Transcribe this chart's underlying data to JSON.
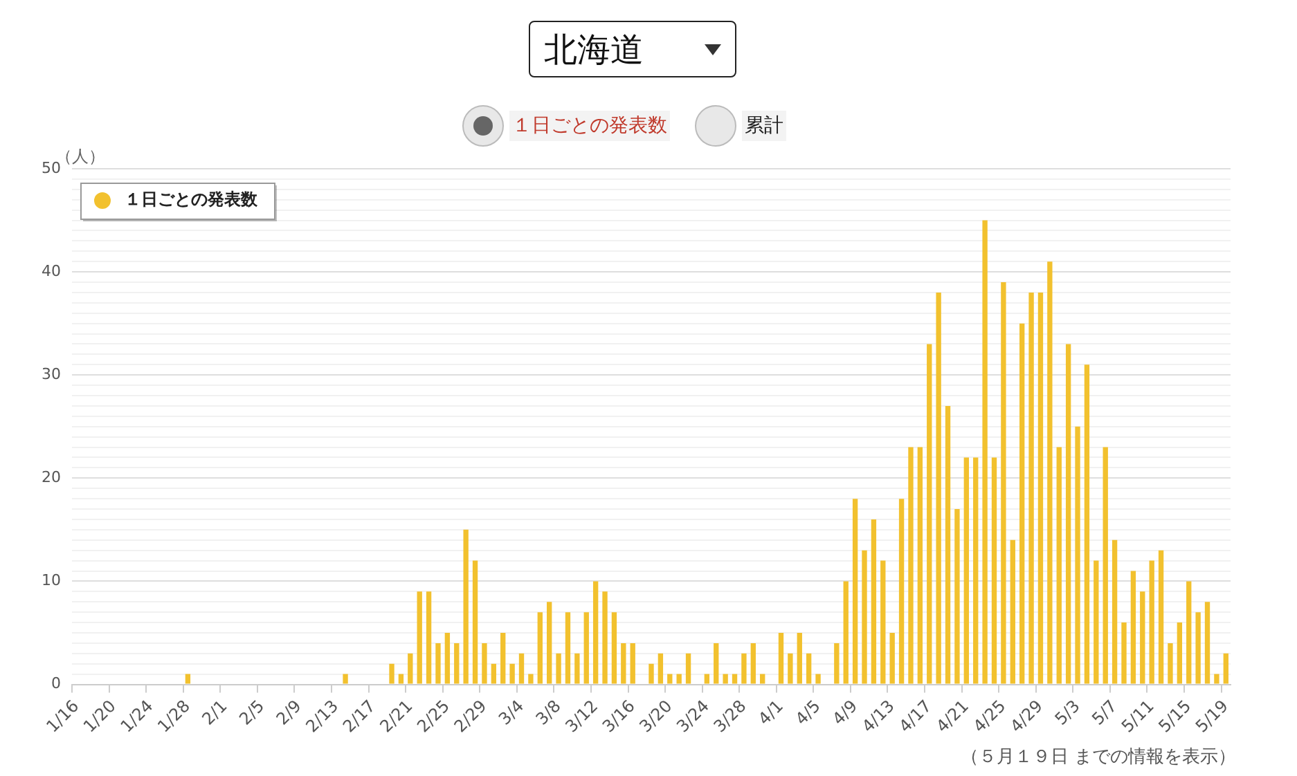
{
  "chart_data": {
    "type": "bar",
    "title": "北海道",
    "ylabel": "（人）",
    "annotations": [
      "累計",
      "（５月１９日 までの情報を表示）"
    ],
    "categories": [
      "1/16",
      null,
      null,
      null,
      "1/20",
      null,
      null,
      null,
      "1/24",
      null,
      null,
      null,
      "1/28",
      null,
      null,
      null,
      "2/1",
      null,
      null,
      null,
      "2/5",
      null,
      null,
      null,
      "2/9",
      null,
      null,
      null,
      "2/13",
      null,
      null,
      null,
      "2/17",
      null,
      null,
      null,
      "2/21",
      null,
      null,
      null,
      "2/25",
      null,
      null,
      null,
      "2/29",
      null,
      null,
      null,
      "3/4",
      null,
      null,
      null,
      "3/8",
      null,
      null,
      null,
      "3/12",
      null,
      null,
      null,
      "3/16",
      null,
      null,
      null,
      "3/20",
      null,
      null,
      null,
      "3/24",
      null,
      null,
      null,
      "3/28",
      null,
      null,
      null,
      "4/1",
      null,
      null,
      null,
      "4/5",
      null,
      null,
      null,
      "4/9",
      null,
      null,
      null,
      "4/13",
      null,
      null,
      null,
      "4/17",
      null,
      null,
      null,
      "4/21",
      null,
      null,
      null,
      "4/25",
      null,
      null,
      null,
      "4/29",
      null,
      null,
      null,
      "5/3",
      null,
      null,
      null,
      "5/7",
      null,
      null,
      null,
      "5/11",
      null,
      null,
      null,
      "5/15",
      null,
      null,
      null,
      "5/19"
    ],
    "series": [
      {
        "name": "１日ごとの発表数",
        "color": "#f2c12e",
        "values": [
          0,
          0,
          0,
          0,
          0,
          0,
          0,
          0,
          0,
          0,
          0,
          0,
          1,
          0,
          0,
          0,
          0,
          0,
          0,
          0,
          0,
          0,
          0,
          0,
          0,
          0,
          0,
          0,
          0,
          1,
          0,
          0,
          0,
          0,
          2,
          1,
          3,
          9,
          9,
          4,
          5,
          4,
          15,
          12,
          4,
          2,
          5,
          2,
          3,
          1,
          7,
          8,
          3,
          7,
          3,
          7,
          10,
          9,
          7,
          4,
          4,
          0,
          2,
          3,
          1,
          1,
          3,
          0,
          1,
          4,
          1,
          1,
          3,
          4,
          1,
          0,
          5,
          3,
          5,
          3,
          1,
          0,
          4,
          10,
          18,
          13,
          16,
          12,
          5,
          18,
          23,
          23,
          33,
          38,
          27,
          17,
          22,
          22,
          45,
          22,
          39,
          14,
          35,
          38,
          38,
          41,
          23,
          33,
          25,
          31,
          12,
          23,
          14,
          6,
          11,
          9,
          12,
          13,
          4,
          6,
          10,
          7,
          8,
          1,
          3
        ]
      }
    ],
    "ylim": [
      0,
      50
    ],
    "yticks": [
      0,
      {
        "value": 1,
        "label": null
      },
      {
        "value": 2,
        "label": null
      },
      {
        "value": 3,
        "label": null
      },
      {
        "value": 4,
        "label": null
      },
      {
        "value": 5,
        "label": null
      },
      {
        "value": 6,
        "label": null
      },
      {
        "value": 7,
        "label": null
      },
      {
        "value": 8,
        "label": null
      },
      {
        "value": 9,
        "label": null
      },
      10,
      {
        "value": 11,
        "label": null
      },
      {
        "value": 12,
        "label": null
      },
      {
        "value": 13,
        "label": null
      },
      {
        "value": 14,
        "label": null
      },
      {
        "value": 15,
        "label": null
      },
      {
        "value": 16,
        "label": null
      },
      {
        "value": 17,
        "label": null
      },
      {
        "value": 18,
        "label": null
      },
      {
        "value": 19,
        "label": null
      },
      20,
      {
        "value": 21,
        "label": null
      },
      {
        "value": 22,
        "label": null
      },
      {
        "value": 23,
        "label": null
      },
      {
        "value": 24,
        "label": null
      },
      {
        "value": 25,
        "label": null
      },
      {
        "value": 26,
        "label": null
      },
      {
        "value": 27,
        "label": null
      },
      {
        "value": 28,
        "label": null
      },
      {
        "value": 29,
        "label": null
      },
      30,
      {
        "value": 31,
        "label": null
      },
      {
        "value": 32,
        "label": null
      },
      {
        "value": 33,
        "label": null
      },
      {
        "value": 34,
        "label": null
      },
      {
        "value": 35,
        "label": null
      },
      {
        "value": 36,
        "label": null
      },
      {
        "value": 37,
        "label": null
      },
      {
        "value": 38,
        "label": null
      },
      {
        "value": 39,
        "label": null
      },
      40,
      {
        "value": 41,
        "label": null
      },
      {
        "value": 42,
        "label": null
      },
      {
        "value": 43,
        "label": null
      },
      {
        "value": 44,
        "label": null
      },
      {
        "value": 45,
        "label": null
      },
      {
        "value": 46,
        "label": null
      },
      {
        "value": 47,
        "label": null
      },
      {
        "value": 48,
        "label": null
      },
      {
        "value": 49,
        "label": null
      },
      50
    ],
    "grid": "y",
    "legend": "top left"
  }
}
